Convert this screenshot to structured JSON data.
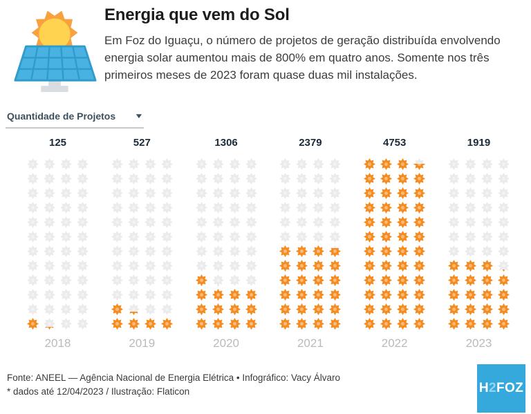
{
  "header": {
    "title": "Energia que vem do Sol",
    "description": "Em Foz do Iguaçu, o número de projetos de geração distribuída envolvendo energia solar aumentou mais de 800% em quatro anos. Somente nos três primeiros meses de 2023 foram quase duas mil instalações.",
    "illustration": "solar-panel-with-sun"
  },
  "controls": {
    "metric_dropdown": {
      "value": "Quantidade de Projetos"
    }
  },
  "chart_data": {
    "type": "pictogram",
    "icon": "sun-icon",
    "unit_per_icon": 100,
    "grid": {
      "rows": 12,
      "cols": 4
    },
    "fill_direction": "bottom-up",
    "categories": [
      "2018",
      "2019",
      "2020",
      "2021",
      "2022",
      "2023"
    ],
    "values": [
      125,
      527,
      1306,
      2379,
      4753,
      1919
    ],
    "colors": {
      "filled": "#F68B1F",
      "empty": "#EBEBED"
    },
    "legend_position": "none",
    "grid_lines": false
  },
  "footer": {
    "source_line": "Fonte: ANEEL — Agência Nacional de Energia Elétrica • Infográfico: Vacy Álvaro",
    "note_line": "* dados até 12/04/2023 / Ilustração: Flaticon",
    "logo": {
      "text_h": "H",
      "text_2": "2",
      "text_foz": "FOZ",
      "bg_color": "#35A9DC"
    }
  }
}
